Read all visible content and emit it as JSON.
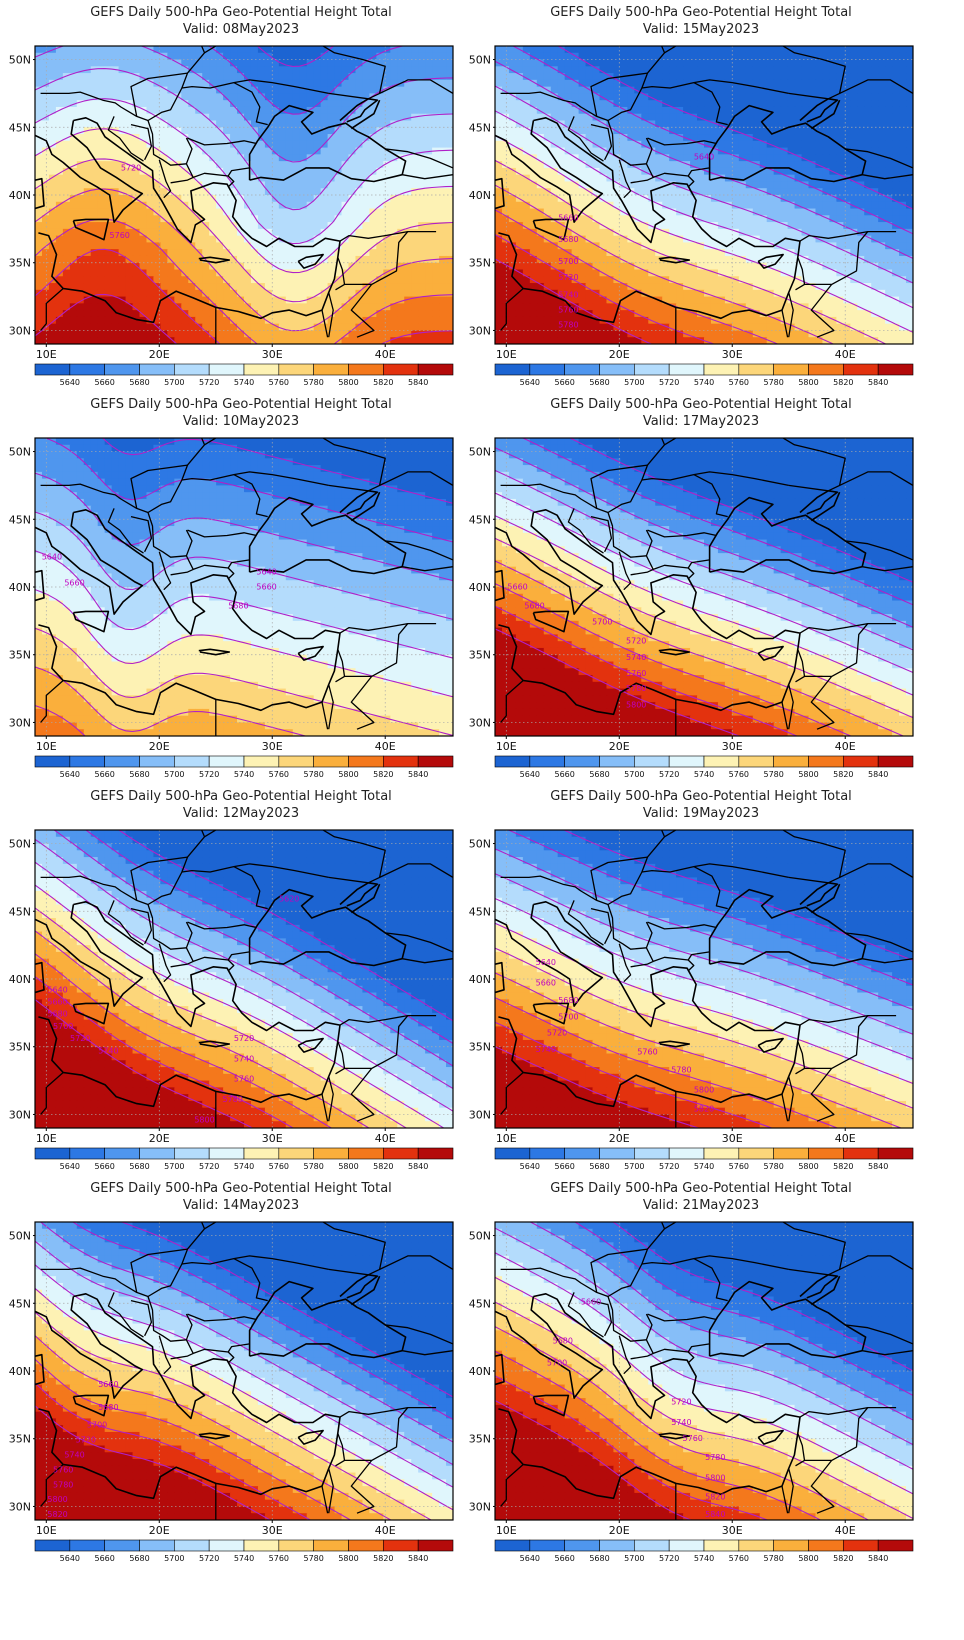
{
  "palette": {
    "levels": [
      5640,
      5660,
      5680,
      5700,
      5720,
      5740,
      5760,
      5780,
      5800,
      5820,
      5840
    ],
    "colors": [
      "#1c64d2",
      "#2d78e4",
      "#4f96ee",
      "#86bef8",
      "#b4dcfc",
      "#e0f6fc",
      "#fdf2b4",
      "#fcd67a",
      "#faaf3c",
      "#f4781c",
      "#e3320e",
      "#b40a0a"
    ],
    "contour_color": "#b020c8",
    "border_color": "#000000"
  },
  "axes": {
    "lon_ticks": [
      {
        "v": 10,
        "label": "10E"
      },
      {
        "v": 20,
        "label": "20E"
      },
      {
        "v": 30,
        "label": "30E"
      },
      {
        "v": 40,
        "label": "40E"
      }
    ],
    "lat_ticks": [
      {
        "v": 30,
        "label": "30N"
      },
      {
        "v": 35,
        "label": "35N"
      },
      {
        "v": 40,
        "label": "40N"
      },
      {
        "v": 45,
        "label": "45N"
      },
      {
        "v": 50,
        "label": "50N"
      }
    ],
    "lon_range": [
      9,
      46
    ],
    "lat_range": [
      29,
      51
    ]
  },
  "panels": [
    {
      "title": "GEFS Daily 500-hPa Geo-Potential Height Total",
      "valid": "Valid: 08May2023",
      "field": {
        "base": 5745,
        "tilt": 0,
        "grad": 7.5,
        "trough_amp": 55,
        "trough_lon": 32,
        "trough_w": 6,
        "ridge_amp": 45,
        "ridge_lon": 15,
        "ridge_w": 7
      },
      "contour_labels": [
        {
          "text": "5720",
          "lon": 17.5,
          "lat": 42.0
        },
        {
          "text": "5760",
          "lon": 16.5,
          "lat": 37.0
        }
      ]
    },
    {
      "title": "GEFS Daily 500-hPa Geo-Potential Height Total",
      "valid": "Valid: 15May2023",
      "field": {
        "base": 5720,
        "tilt": 2.2,
        "grad": 11,
        "trough_amp": 15,
        "trough_lon": 22,
        "trough_w": 9,
        "ridge_amp": 0,
        "ridge_lon": 40,
        "ridge_w": 8
      },
      "contour_labels": [
        {
          "text": "5640",
          "lon": 27.5,
          "lat": 42.8
        },
        {
          "text": "5660",
          "lon": 15.5,
          "lat": 38.3
        },
        {
          "text": "5680",
          "lon": 15.5,
          "lat": 36.7
        },
        {
          "text": "5700",
          "lon": 15.5,
          "lat": 35.1
        },
        {
          "text": "5720",
          "lon": 15.5,
          "lat": 33.9
        },
        {
          "text": "5740",
          "lon": 15.5,
          "lat": 32.6
        },
        {
          "text": "5760",
          "lon": 15.5,
          "lat": 31.5
        },
        {
          "text": "5780",
          "lon": 15.5,
          "lat": 30.4
        }
      ]
    },
    {
      "title": "GEFS Daily 500-hPa Geo-Potential Height Total",
      "valid": "Valid: 10May2023",
      "field": {
        "base": 5715,
        "tilt": 1.2,
        "grad": 7,
        "trough_amp": 30,
        "trough_lon": 17,
        "trough_w": 4,
        "ridge_amp": 0,
        "ridge_lon": 40,
        "ridge_w": 8
      },
      "contour_labels": [
        {
          "text": "5640",
          "lon": 10.5,
          "lat": 42.2
        },
        {
          "text": "5660",
          "lon": 12.5,
          "lat": 40.3
        },
        {
          "text": "5640",
          "lon": 29.5,
          "lat": 41.1
        },
        {
          "text": "5660",
          "lon": 29.5,
          "lat": 40.0
        },
        {
          "text": "5680",
          "lon": 27.0,
          "lat": 38.6
        }
      ]
    },
    {
      "title": "GEFS Daily 500-hPa Geo-Potential Height Total",
      "valid": "Valid: 17May2023",
      "field": {
        "base": 5735,
        "tilt": 2.0,
        "grad": 12,
        "trough_amp": 10,
        "trough_lon": 22,
        "trough_w": 9,
        "ridge_amp": 0,
        "ridge_lon": 40,
        "ridge_w": 8
      },
      "contour_labels": [
        {
          "text": "5660",
          "lon": 11.0,
          "lat": 40.0
        },
        {
          "text": "5680",
          "lon": 12.5,
          "lat": 38.6
        },
        {
          "text": "5700",
          "lon": 18.5,
          "lat": 37.4
        },
        {
          "text": "5720",
          "lon": 21.5,
          "lat": 36.0
        },
        {
          "text": "5740",
          "lon": 21.5,
          "lat": 34.8
        },
        {
          "text": "5760",
          "lon": 21.5,
          "lat": 33.6
        },
        {
          "text": "5780",
          "lon": 21.5,
          "lat": 32.5
        },
        {
          "text": "5800",
          "lon": 21.5,
          "lat": 31.3
        }
      ]
    },
    {
      "title": "GEFS Daily 500-hPa Geo-Potential Height Total",
      "valid": "Valid: 12May2023",
      "field": {
        "base": 5730,
        "tilt": 2.8,
        "grad": 12,
        "trough_amp": 18,
        "trough_lon": 18,
        "trough_w": 8,
        "ridge_amp": 0,
        "ridge_lon": 40,
        "ridge_w": 8
      },
      "contour_labels": [
        {
          "text": "5620",
          "lon": 31.5,
          "lat": 45.9
        },
        {
          "text": "5640",
          "lon": 11.0,
          "lat": 39.2
        },
        {
          "text": "5660",
          "lon": 11.0,
          "lat": 38.3
        },
        {
          "text": "5680",
          "lon": 11.0,
          "lat": 37.4
        },
        {
          "text": "5700",
          "lon": 11.5,
          "lat": 36.5
        },
        {
          "text": "5720",
          "lon": 13.0,
          "lat": 35.6
        },
        {
          "text": "5740",
          "lon": 15.5,
          "lat": 34.7
        },
        {
          "text": "5720",
          "lon": 27.5,
          "lat": 35.6
        },
        {
          "text": "5740",
          "lon": 27.5,
          "lat": 34.1
        },
        {
          "text": "5760",
          "lon": 27.5,
          "lat": 32.6
        },
        {
          "text": "5780",
          "lon": 26.5,
          "lat": 31.1
        },
        {
          "text": "5800",
          "lon": 24.0,
          "lat": 29.6
        }
      ]
    },
    {
      "title": "GEFS Daily 500-hPa Geo-Potential Height Total",
      "valid": "Valid: 19May2023",
      "field": {
        "base": 5730,
        "tilt": 1.8,
        "grad": 11,
        "trough_amp": 10,
        "trough_lon": 20,
        "trough_w": 9,
        "ridge_amp": 0,
        "ridge_lon": 40,
        "ridge_w": 8
      },
      "contour_labels": [
        {
          "text": "5640",
          "lon": 13.5,
          "lat": 41.2
        },
        {
          "text": "5660",
          "lon": 13.5,
          "lat": 39.7
        },
        {
          "text": "5680",
          "lon": 15.5,
          "lat": 38.4
        },
        {
          "text": "5700",
          "lon": 15.5,
          "lat": 37.2
        },
        {
          "text": "5720",
          "lon": 14.5,
          "lat": 36.0
        },
        {
          "text": "5740",
          "lon": 13.5,
          "lat": 34.8
        },
        {
          "text": "5760",
          "lon": 22.5,
          "lat": 34.6
        },
        {
          "text": "5780",
          "lon": 25.5,
          "lat": 33.3
        },
        {
          "text": "5800",
          "lon": 27.5,
          "lat": 31.8
        },
        {
          "text": "5820",
          "lon": 27.5,
          "lat": 30.4
        }
      ]
    },
    {
      "title": "GEFS Daily 500-hPa Geo-Potential Height Total",
      "valid": "Valid: 14May2023",
      "field": {
        "base": 5735,
        "tilt": 2.6,
        "grad": 12,
        "trough_amp": 25,
        "trough_lon": 13,
        "trough_w": 6,
        "ridge_amp": 0,
        "ridge_lon": 40,
        "ridge_w": 8
      },
      "contour_labels": [
        {
          "text": "5660",
          "lon": 15.5,
          "lat": 39.0
        },
        {
          "text": "5680",
          "lon": 15.5,
          "lat": 37.3
        },
        {
          "text": "5700",
          "lon": 14.5,
          "lat": 36.0
        },
        {
          "text": "5720",
          "lon": 13.5,
          "lat": 34.9
        },
        {
          "text": "5740",
          "lon": 12.5,
          "lat": 33.8
        },
        {
          "text": "5760",
          "lon": 11.5,
          "lat": 32.7
        },
        {
          "text": "5780",
          "lon": 11.5,
          "lat": 31.6
        },
        {
          "text": "5800",
          "lon": 11.0,
          "lat": 30.5
        },
        {
          "text": "5820",
          "lon": 11.0,
          "lat": 29.4
        }
      ]
    },
    {
      "title": "GEFS Daily 500-hPa Geo-Potential Height Total",
      "valid": "Valid: 21May2023",
      "field": {
        "base": 5740,
        "tilt": 2.4,
        "grad": 11,
        "trough_amp": 22,
        "trough_lon": 25,
        "trough_w": 6,
        "ridge_amp": 0,
        "ridge_lon": 40,
        "ridge_w": 8
      },
      "contour_labels": [
        {
          "text": "5660",
          "lon": 17.5,
          "lat": 45.1
        },
        {
          "text": "5680",
          "lon": 15.0,
          "lat": 42.2
        },
        {
          "text": "5700",
          "lon": 14.5,
          "lat": 40.6
        },
        {
          "text": "5720",
          "lon": 25.5,
          "lat": 37.7
        },
        {
          "text": "5740",
          "lon": 25.5,
          "lat": 36.2
        },
        {
          "text": "5760",
          "lon": 26.5,
          "lat": 35.0
        },
        {
          "text": "5780",
          "lon": 28.5,
          "lat": 33.6
        },
        {
          "text": "5800",
          "lon": 28.5,
          "lat": 32.1
        },
        {
          "text": "5820",
          "lon": 28.5,
          "lat": 30.7
        },
        {
          "text": "5840",
          "lon": 28.5,
          "lat": 29.4
        }
      ]
    }
  ]
}
